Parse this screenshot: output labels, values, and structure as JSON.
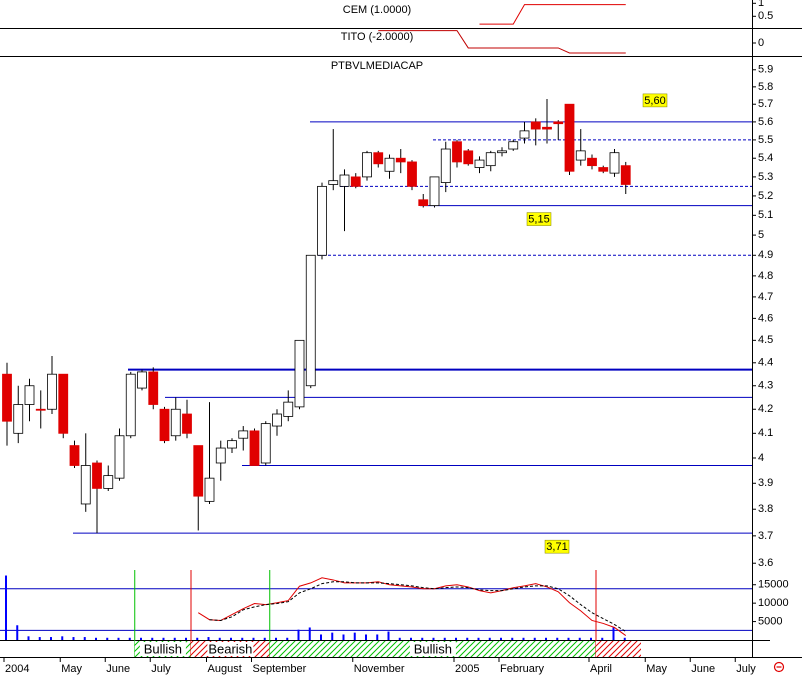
{
  "chart_data": [
    {
      "type": "line",
      "label": "CEM (1.0000)",
      "color": "#e00000",
      "ylim": [
        0.05,
        1.05
      ],
      "yticks": [
        0.5,
        1
      ],
      "values": [
        null,
        null,
        null,
        null,
        null,
        null,
        null,
        null,
        null,
        null,
        null,
        null,
        null,
        null,
        null,
        null,
        null,
        null,
        null,
        null,
        null,
        null,
        null,
        null,
        null,
        null,
        null,
        null,
        null,
        null,
        null,
        null,
        null,
        null,
        null,
        null,
        null,
        null,
        null,
        null,
        null,
        null,
        0.2,
        0.2,
        0.2,
        0.2,
        0.95,
        0.95,
        0.95,
        0.95,
        0.95,
        0.95,
        0.95,
        0.95,
        0.95,
        0.95,
        null,
        null,
        null,
        null,
        null,
        null,
        null,
        null,
        null,
        null,
        null
      ]
    },
    {
      "type": "line",
      "label": "TITO (-2.0000)",
      "color": "#c00000",
      "ylim": [
        -1,
        1
      ],
      "yticks": [
        0
      ],
      "values": [
        null,
        null,
        null,
        null,
        null,
        null,
        null,
        null,
        null,
        null,
        null,
        null,
        null,
        null,
        null,
        null,
        null,
        null,
        null,
        null,
        null,
        null,
        null,
        null,
        null,
        null,
        null,
        null,
        null,
        null,
        null,
        null,
        null,
        0.95,
        0.95,
        0.95,
        0.95,
        0.95,
        0.95,
        0.95,
        0.95,
        -0.38,
        -0.38,
        -0.38,
        -0.38,
        -0.38,
        -0.38,
        -0.38,
        -0.38,
        -0.38,
        -0.77,
        -0.77,
        -0.77,
        -0.77,
        -0.77,
        -0.77,
        null,
        null,
        null,
        null,
        null,
        null,
        null,
        null,
        null,
        null,
        null
      ]
    },
    {
      "type": "candlestick",
      "title": "PTBVLMEDIACAP",
      "log_scale": true,
      "ylim": [
        3.59,
        5.97
      ],
      "yticks": [
        3.6,
        3.7,
        3.8,
        3.9,
        4.0,
        4.1,
        4.2,
        4.3,
        4.4,
        4.5,
        4.6,
        4.7,
        4.8,
        4.9,
        5.0,
        5.1,
        5.2,
        5.3,
        5.4,
        5.5,
        5.6,
        5.7,
        5.8,
        5.9
      ],
      "up_color": "#ffffff",
      "down_color": "#e00000",
      "categories": [
        "2004",
        null,
        null,
        null,
        null,
        "May",
        null,
        null,
        null,
        "June",
        null,
        null,
        null,
        "July",
        null,
        null,
        null,
        null,
        "August",
        null,
        null,
        null,
        "September",
        null,
        null,
        null,
        null,
        null,
        null,
        null,
        null,
        "November",
        null,
        null,
        null,
        null,
        null,
        null,
        null,
        null,
        "2005",
        null,
        null,
        null,
        "February",
        null,
        null,
        null,
        null,
        null,
        null,
        null,
        "April",
        null,
        null,
        null,
        null,
        "May",
        null,
        null,
        null,
        "June",
        null,
        null,
        null,
        "July",
        null
      ],
      "open": [
        4.35,
        4.1,
        4.22,
        4.2,
        4.2,
        4.35,
        4.05,
        3.82,
        3.98,
        3.88,
        3.92,
        4.09,
        4.29,
        4.36,
        4.2,
        4.09,
        4.18,
        4.05,
        3.83,
        3.98,
        4.04,
        4.08,
        4.11,
        3.98,
        4.13,
        4.17,
        4.21,
        4.3,
        4.9,
        5.26,
        5.25,
        5.3,
        5.3,
        5.43,
        5.33,
        5.4,
        5.38,
        5.18,
        5.15,
        5.27,
        5.49,
        5.44,
        5.35,
        5.36,
        5.43,
        5.45,
        5.51,
        5.6,
        5.57,
        5.6,
        5.7,
        5.39,
        5.4,
        5.35,
        5.32,
        5.36,
        null,
        null,
        null,
        null,
        null,
        null,
        null,
        null,
        null,
        null,
        null
      ],
      "high": [
        4.4,
        4.3,
        4.33,
        4.28,
        4.43,
        4.35,
        4.07,
        4.1,
        3.99,
        3.97,
        4.12,
        4.36,
        4.37,
        4.38,
        4.21,
        4.25,
        4.24,
        4.05,
        4.23,
        4.07,
        4.08,
        4.13,
        4.12,
        4.15,
        4.2,
        4.28,
        4.5,
        4.9,
        5.27,
        5.56,
        5.34,
        5.32,
        5.44,
        5.44,
        5.42,
        5.45,
        5.39,
        5.21,
        5.3,
        5.49,
        5.5,
        5.45,
        5.41,
        5.44,
        5.46,
        5.5,
        5.6,
        5.62,
        5.73,
        5.61,
        5.7,
        5.56,
        5.42,
        5.36,
        5.45,
        5.38,
        null,
        null,
        null,
        null,
        null,
        null,
        null,
        null,
        null,
        null,
        null
      ],
      "low": [
        4.05,
        4.06,
        4.15,
        4.12,
        4.18,
        4.08,
        3.96,
        3.79,
        3.71,
        3.87,
        3.91,
        4.08,
        4.28,
        4.2,
        4.06,
        4.07,
        4.08,
        3.72,
        3.82,
        3.91,
        4.02,
        4.03,
        3.97,
        3.97,
        4.09,
        4.15,
        4.2,
        4.29,
        4.88,
        5.23,
        5.02,
        5.24,
        5.28,
        5.35,
        5.29,
        5.32,
        5.23,
        5.14,
        5.14,
        5.22,
        5.35,
        5.36,
        5.32,
        5.33,
        5.41,
        5.44,
        5.48,
        5.47,
        5.48,
        5.5,
        5.31,
        5.36,
        5.34,
        5.32,
        5.3,
        5.21,
        null,
        null,
        null,
        null,
        null,
        null,
        null,
        null,
        null,
        null,
        null
      ],
      "close": [
        4.15,
        4.22,
        4.3,
        4.2,
        4.35,
        4.1,
        3.97,
        3.97,
        3.88,
        3.93,
        4.09,
        4.35,
        4.36,
        4.22,
        4.07,
        4.2,
        4.1,
        3.85,
        3.92,
        4.04,
        4.07,
        4.11,
        3.97,
        4.14,
        4.18,
        4.23,
        4.5,
        4.9,
        5.25,
        5.28,
        5.31,
        5.25,
        5.43,
        5.37,
        5.4,
        5.38,
        5.25,
        5.15,
        5.3,
        5.45,
        5.38,
        5.37,
        5.39,
        5.43,
        5.44,
        5.49,
        5.55,
        5.56,
        5.56,
        5.59,
        5.33,
        5.44,
        5.36,
        5.33,
        5.43,
        5.26,
        null,
        null,
        null,
        null,
        null,
        null,
        null,
        null,
        null,
        null,
        null
      ],
      "levels": [
        {
          "value": 5.6,
          "style": "solid"
        },
        {
          "value": 5.5,
          "style": "dashed"
        },
        {
          "value": 5.25,
          "style": "dashed"
        },
        {
          "value": 5.15,
          "style": "solid"
        },
        {
          "value": 4.9,
          "style": "dashed"
        },
        {
          "value": 4.37,
          "style": "solid"
        },
        {
          "value": 4.25,
          "style": "solid"
        },
        {
          "value": 3.97,
          "style": "solid"
        },
        {
          "value": 3.71,
          "style": "solid"
        }
      ],
      "level_color": "#0000c0",
      "annotations": [
        {
          "value": 5.6,
          "label": "5,60"
        },
        {
          "value": 5.15,
          "label": "5,15"
        },
        {
          "value": 3.71,
          "label": "3,71"
        }
      ]
    },
    {
      "type": "volume",
      "color": "#0000ff",
      "ylim": [
        0,
        19000
      ],
      "yticks": [
        5000,
        10000,
        15000
      ],
      "values": [
        17500,
        4000,
        1000,
        800,
        800,
        1000,
        800,
        800,
        600,
        600,
        600,
        600,
        600,
        600,
        600,
        600,
        600,
        600,
        800,
        600,
        600,
        600,
        600,
        600,
        600,
        600,
        2800,
        3400,
        1500,
        2000,
        1500,
        2000,
        1500,
        1500,
        2300,
        600,
        600,
        600,
        600,
        600,
        600,
        600,
        600,
        600,
        600,
        600,
        600,
        600,
        600,
        600,
        600,
        600,
        600,
        600,
        3400,
        600,
        null,
        null,
        null,
        null,
        null,
        null,
        null,
        null,
        null,
        null,
        null
      ],
      "series": [
        {
          "color": "#e00000",
          "dashed": false,
          "values": [
            null,
            null,
            null,
            null,
            null,
            null,
            null,
            null,
            null,
            null,
            null,
            null,
            null,
            null,
            null,
            null,
            null,
            7400,
            5500,
            5300,
            6900,
            8500,
            9900,
            9600,
            10100,
            10700,
            14600,
            15500,
            16900,
            16300,
            15500,
            15500,
            15500,
            15800,
            15000,
            14700,
            14400,
            13900,
            13900,
            14700,
            15000,
            14400,
            13400,
            12800,
            13400,
            14200,
            14700,
            15300,
            14400,
            13100,
            10100,
            7900,
            5300,
            4500,
            3400,
            1200,
            null,
            null,
            null,
            null,
            null,
            null,
            null,
            null,
            null,
            null,
            null
          ]
        },
        {
          "color": "#000000",
          "dashed": true,
          "values": [
            null,
            null,
            null,
            null,
            null,
            null,
            null,
            null,
            null,
            null,
            null,
            null,
            null,
            null,
            null,
            null,
            null,
            null,
            5500,
            5300,
            6300,
            8200,
            9000,
            9600,
            9900,
            10400,
            12800,
            13900,
            15300,
            15800,
            15800,
            15500,
            15500,
            15500,
            15300,
            15000,
            14700,
            14200,
            13900,
            14200,
            14400,
            14200,
            13600,
            13400,
            13400,
            13900,
            14400,
            14700,
            14700,
            13900,
            12000,
            9600,
            7400,
            5800,
            4200,
            2300,
            null,
            null,
            null,
            null,
            null,
            null,
            null,
            null,
            null,
            null,
            null
          ]
        }
      ],
      "levels": [
        13900,
        2600
      ],
      "level_color": "#0000c0",
      "signals": [
        {
          "label": "Bullish",
          "start": 11,
          "end": 16,
          "color": "#00c000"
        },
        {
          "label": "Bearish",
          "start": 16,
          "end": 23,
          "color": "#e00000"
        },
        {
          "label": "Bullish",
          "start": 23,
          "end": 52,
          "color": "#00c000"
        },
        {
          "start": 52,
          "end": 56,
          "color": "#e00000"
        }
      ]
    }
  ]
}
